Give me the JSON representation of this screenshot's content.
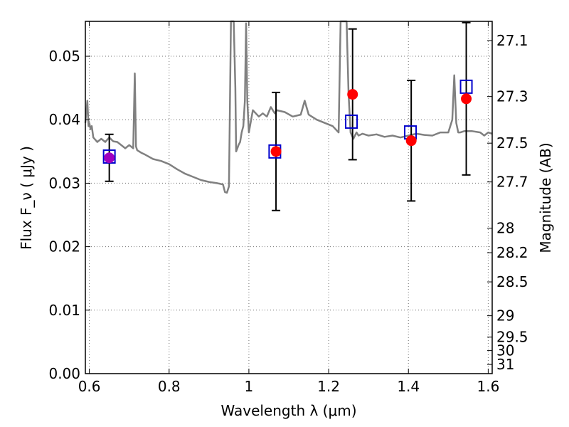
{
  "chart_data": {
    "type": "scatter",
    "xlabel": "Wavelength  λ (μm)",
    "ylabel": "Flux  F_ν  ( μJy )",
    "ylabel_right": "Magnitude (AB)",
    "xlim": [
      0.59,
      1.61
    ],
    "ylim": [
      0.0,
      0.0555
    ],
    "grid": true,
    "x_ticks": [
      0.6,
      0.8,
      1.0,
      1.2,
      1.4,
      1.6
    ],
    "x_tick_labels": [
      "0.6",
      "0.8",
      "1",
      "1.2",
      "1.4",
      "1.6"
    ],
    "y_ticks": [
      0.0,
      0.01,
      0.02,
      0.03,
      0.04,
      0.05
    ],
    "y_tick_labels": [
      "0.00",
      "0.01",
      "0.02",
      "0.03",
      "0.04",
      "0.05"
    ],
    "right_ticks": [
      {
        "label": "27.1",
        "mag": 27.1
      },
      {
        "label": "27.3",
        "mag": 27.3
      },
      {
        "label": "27.5",
        "mag": 27.5
      },
      {
        "label": "27.7",
        "mag": 27.7
      },
      {
        "label": "28",
        "mag": 28.0
      },
      {
        "label": "28.2",
        "mag": 28.2
      },
      {
        "label": "28.5",
        "mag": 28.5
      },
      {
        "label": "29",
        "mag": 29.0
      },
      {
        "label": "29.5",
        "mag": 29.5
      },
      {
        "label": "30",
        "mag": 30.0
      },
      {
        "label": "31",
        "mag": 31.0
      }
    ],
    "series": [
      {
        "kind": "line",
        "color": "#808080",
        "x": [
          0.59,
          0.595,
          0.598,
          0.6,
          0.603,
          0.606,
          0.61,
          0.62,
          0.63,
          0.64,
          0.65,
          0.66,
          0.67,
          0.68,
          0.69,
          0.7,
          0.71,
          0.714,
          0.717,
          0.72,
          0.73,
          0.74,
          0.76,
          0.78,
          0.8,
          0.82,
          0.84,
          0.86,
          0.88,
          0.9,
          0.92,
          0.935,
          0.94,
          0.945,
          0.95,
          0.955,
          0.958,
          0.962,
          0.966,
          0.968,
          0.971,
          0.974,
          0.978,
          0.982,
          0.986,
          0.99,
          0.993,
          0.996,
          1.0,
          1.01,
          1.025,
          1.035,
          1.045,
          1.055,
          1.065,
          1.07,
          1.09,
          1.11,
          1.13,
          1.14,
          1.15,
          1.17,
          1.19,
          1.21,
          1.225,
          1.23,
          1.234,
          1.245,
          1.25,
          1.255,
          1.262,
          1.27,
          1.275,
          1.285,
          1.3,
          1.32,
          1.34,
          1.36,
          1.38,
          1.4,
          1.42,
          1.44,
          1.46,
          1.48,
          1.5,
          1.51,
          1.515,
          1.52,
          1.525,
          1.53,
          1.54,
          1.56,
          1.58,
          1.59,
          1.6,
          1.61
        ],
        "y": [
          0.0395,
          0.043,
          0.039,
          0.0395,
          0.0385,
          0.039,
          0.0372,
          0.0365,
          0.037,
          0.0365,
          0.0372,
          0.0366,
          0.0365,
          0.036,
          0.0355,
          0.036,
          0.0355,
          0.0473,
          0.0358,
          0.0352,
          0.0348,
          0.0345,
          0.0338,
          0.0335,
          0.033,
          0.0322,
          0.0315,
          0.031,
          0.0305,
          0.0302,
          0.03,
          0.0298,
          0.0286,
          0.0285,
          0.0295,
          0.056,
          0.056,
          0.056,
          0.045,
          0.035,
          0.0355,
          0.036,
          0.0365,
          0.038,
          0.039,
          0.043,
          0.0552,
          0.043,
          0.038,
          0.0415,
          0.0405,
          0.041,
          0.0405,
          0.042,
          0.041,
          0.0415,
          0.0412,
          0.0405,
          0.0408,
          0.043,
          0.0408,
          0.04,
          0.0395,
          0.039,
          0.038,
          0.056,
          0.056,
          0.056,
          0.044,
          0.038,
          0.037,
          0.038,
          0.0375,
          0.0378,
          0.0375,
          0.0377,
          0.0373,
          0.0375,
          0.0372,
          0.0375,
          0.0378,
          0.0376,
          0.0375,
          0.038,
          0.038,
          0.04,
          0.047,
          0.0395,
          0.038,
          0.038,
          0.0382,
          0.0382,
          0.038,
          0.0375,
          0.038,
          0.0378
        ]
      },
      {
        "kind": "points",
        "marker": "square",
        "color": "#0000cc",
        "x": [
          0.65,
          1.065,
          1.257,
          1.405,
          1.545
        ],
        "y": [
          0.0342,
          0.035,
          0.0397,
          0.038,
          0.0452
        ]
      },
      {
        "kind": "points",
        "marker": "circle",
        "color": "#ff0000",
        "x": [
          0.65,
          1.068,
          1.26,
          1.407,
          1.545
        ],
        "y": [
          0.034,
          0.035,
          0.044,
          0.0367,
          0.0433
        ],
        "yerr": [
          0.0037,
          0.0093,
          0.0103,
          0.0095,
          0.012
        ],
        "overlap_color": "#a000c0"
      }
    ]
  }
}
